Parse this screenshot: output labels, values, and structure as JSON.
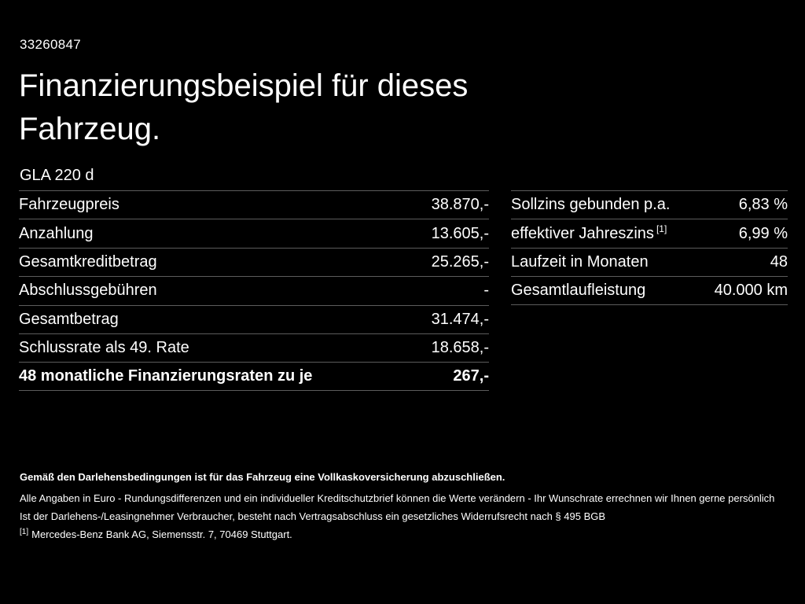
{
  "page": {
    "id_number": "33260847",
    "title_line1": "Finanzierungsbeispiel für dieses",
    "title_line2": "Fahrzeug.",
    "model": "GLA 220 d"
  },
  "left_table": {
    "rows": [
      {
        "label": "Fahrzeugpreis",
        "value": "38.870,-"
      },
      {
        "label": "Anzahlung",
        "value": "13.605,-"
      },
      {
        "label": "Gesamtkreditbetrag",
        "value": "25.265,-"
      },
      {
        "label": "Abschlussgebühren",
        "value": "-"
      },
      {
        "label": "Gesamtbetrag",
        "value": "31.474,-"
      },
      {
        "label": "Schlussrate als 49. Rate",
        "value": "18.658,-"
      },
      {
        "label": "48 monatliche Finanzierungsraten zu je",
        "value": "267,-"
      }
    ]
  },
  "right_table": {
    "rows": [
      {
        "label": "Sollzins gebunden p.a.",
        "value": "6,83 %"
      },
      {
        "label": "effektiver Jahreszins",
        "label_sup": "[1]",
        "value": "6,99 %"
      },
      {
        "label": "Laufzeit in Monaten",
        "value": "48"
      },
      {
        "label": "Gesamtlaufleistung",
        "value": "40.000 km"
      }
    ]
  },
  "footer": {
    "line1": "Gemäß den Darlehensbedingungen ist für das Fahrzeug eine Vollkaskoversicherung abzuschließen.",
    "line2": "Alle Angaben in Euro - Rundungsdifferenzen und ein individueller Kreditschutzbrief können die Werte verändern - Ihr Wunschrate errechnen wir Ihnen gerne persönlich",
    "line3": "Ist der Darlehens-/Leasingnehmer Verbraucher, besteht nach Vertragsabschluss ein gesetzliches Widerrufsrecht nach § 495 BGB",
    "footnote_marker": "[1]",
    "footnote_text": "Mercedes-Benz Bank AG, Siemensstr. 7, 70469 Stuttgart."
  }
}
